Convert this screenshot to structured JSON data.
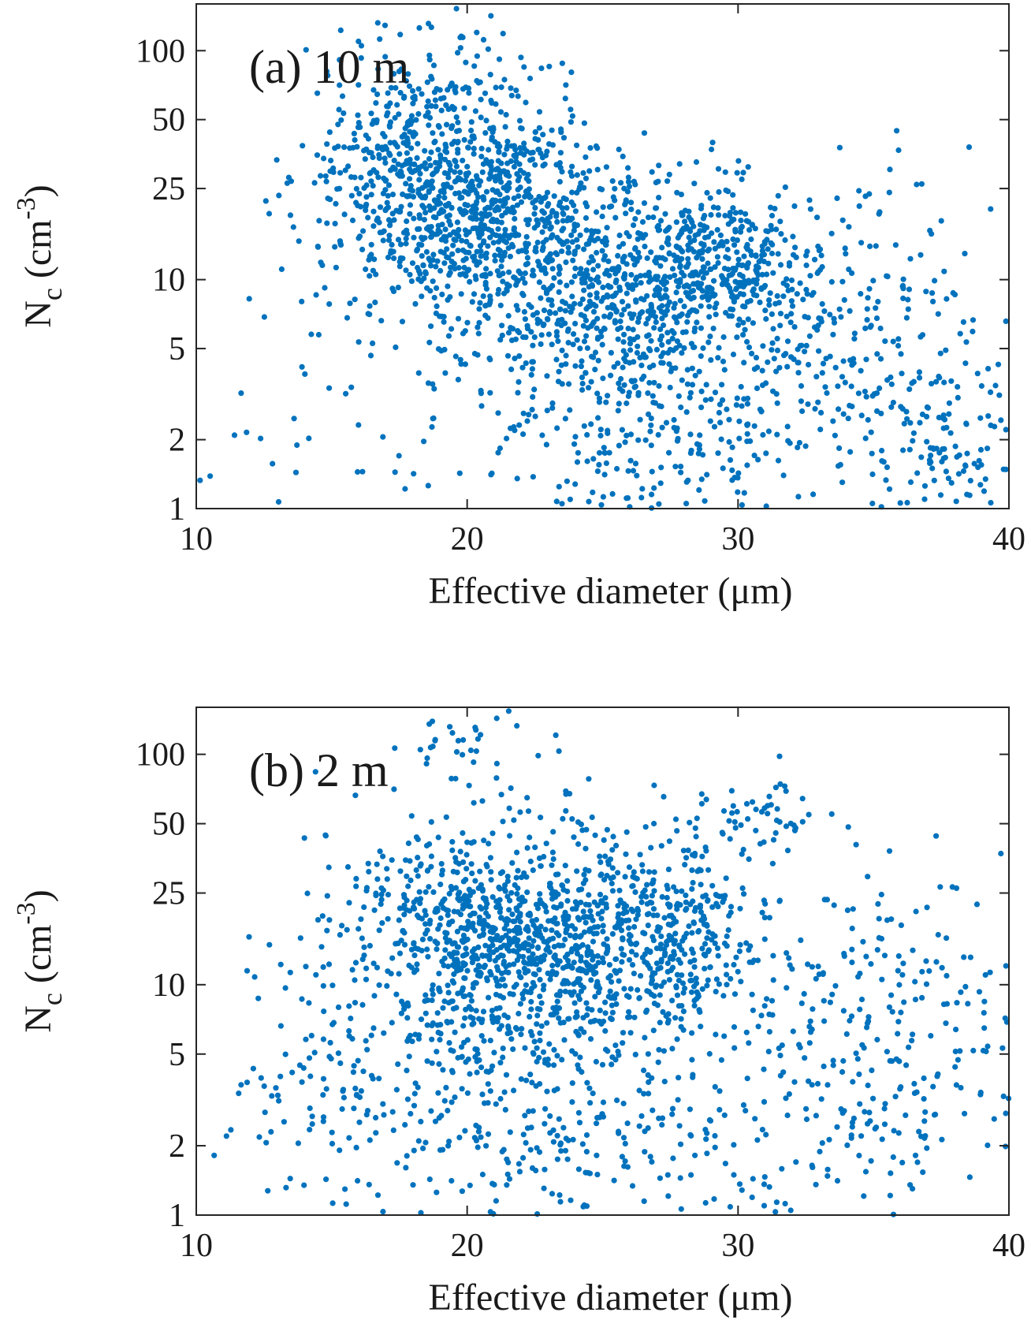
{
  "chart_data": [
    {
      "type": "scatter",
      "title": "(a) 10 m",
      "xlabel": "Effective diameter (μm)",
      "ylabel_main": "N",
      "ylabel_sub": "c",
      "ylabel_unit_open": " (cm",
      "ylabel_unit_sup": "-3",
      "ylabel_unit_close": ")",
      "xlim": [
        10,
        40
      ],
      "ylim": [
        1,
        160
      ],
      "yscale": "log",
      "xticks": [
        10,
        20,
        30,
        40
      ],
      "xtick_labels": [
        "10",
        "20",
        "30",
        "40"
      ],
      "yticks": [
        1,
        2,
        5,
        10,
        25,
        50,
        100
      ],
      "ytick_labels": [
        "1",
        "2",
        "5",
        "10",
        "25",
        "50",
        "100"
      ],
      "grid": false,
      "marker_color": "#0072bd",
      "clusters": [
        {
          "cx": 18.5,
          "cy": 28,
          "sx": 2.3,
          "sy": 0.3,
          "n": 650
        },
        {
          "cx": 21.5,
          "cy": 18,
          "sx": 2.2,
          "sy": 0.25,
          "n": 500
        },
        {
          "cx": 25.5,
          "cy": 10,
          "sx": 2.6,
          "sy": 0.25,
          "n": 500
        },
        {
          "cx": 29.5,
          "cy": 12,
          "sx": 1.6,
          "sy": 0.15,
          "n": 300
        },
        {
          "cx": 27.5,
          "cy": 3.0,
          "sx": 2.8,
          "sy": 0.35,
          "n": 380
        },
        {
          "cx": 34.0,
          "cy": 6,
          "sx": 2.2,
          "sy": 0.35,
          "n": 180
        },
        {
          "cx": 38.0,
          "cy": 2.0,
          "sx": 1.6,
          "sy": 0.3,
          "n": 150
        },
        {
          "cx": 22.0,
          "cy": 2.0,
          "sx": 6.0,
          "sy": 0.25,
          "n": 90
        }
      ]
    },
    {
      "type": "scatter",
      "title": "(b) 2 m",
      "xlabel": "Effective diameter (μm)",
      "ylabel_main": "N",
      "ylabel_sub": "c",
      "ylabel_unit_open": " (cm",
      "ylabel_unit_sup": "-3",
      "ylabel_unit_close": ")",
      "xlim": [
        10,
        40
      ],
      "ylim": [
        1,
        160
      ],
      "yscale": "log",
      "xticks": [
        10,
        20,
        30,
        40
      ],
      "xtick_labels": [
        "10",
        "20",
        "30",
        "40"
      ],
      "yticks": [
        1,
        2,
        5,
        10,
        25,
        50,
        100
      ],
      "ytick_labels": [
        "1",
        "2",
        "5",
        "10",
        "25",
        "50",
        "100"
      ],
      "grid": false,
      "marker_color": "#0072bd",
      "clusters": [
        {
          "cx": 20.5,
          "cy": 16,
          "sx": 2.3,
          "sy": 0.25,
          "n": 650
        },
        {
          "cx": 24.0,
          "cy": 13,
          "sx": 2.5,
          "sy": 0.3,
          "n": 550
        },
        {
          "cx": 28.0,
          "cy": 16,
          "sx": 1.6,
          "sy": 0.2,
          "n": 250
        },
        {
          "cx": 23.0,
          "cy": 2.2,
          "sx": 5.0,
          "sy": 0.35,
          "n": 350
        },
        {
          "cx": 35.0,
          "cy": 6,
          "sx": 3.0,
          "sy": 0.4,
          "n": 300
        },
        {
          "cx": 15.0,
          "cy": 5,
          "sx": 2.0,
          "sy": 0.4,
          "n": 120
        },
        {
          "cx": 31.0,
          "cy": 55,
          "sx": 1.3,
          "sy": 0.08,
          "n": 50
        },
        {
          "cx": 19.5,
          "cy": 110,
          "sx": 1.2,
          "sy": 0.15,
          "n": 40
        }
      ]
    }
  ]
}
